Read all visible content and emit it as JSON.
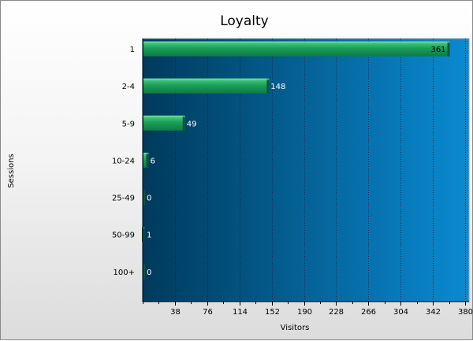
{
  "chart_data": {
    "type": "bar",
    "orientation": "horizontal",
    "title": "Loyalty",
    "xlabel": "Visitors",
    "ylabel": "Sessions",
    "categories": [
      "1",
      "2-4",
      "5-9",
      "10-24",
      "25-49",
      "50-99",
      "100+"
    ],
    "values": [
      361,
      148,
      49,
      6,
      0,
      1,
      0
    ],
    "xlim": [
      0,
      380
    ],
    "xticks": [
      38,
      76,
      114,
      152,
      190,
      228,
      266,
      304,
      342,
      380
    ],
    "grid": true,
    "legend": "none",
    "colors": {
      "bar": "#1aa05a",
      "bar_highlight": "#4ed088",
      "bar_shadow": "#0a5a32",
      "plot_bg_left": "#003a5c",
      "plot_bg_right": "#0a8ad2",
      "grid": "#00263d"
    }
  }
}
